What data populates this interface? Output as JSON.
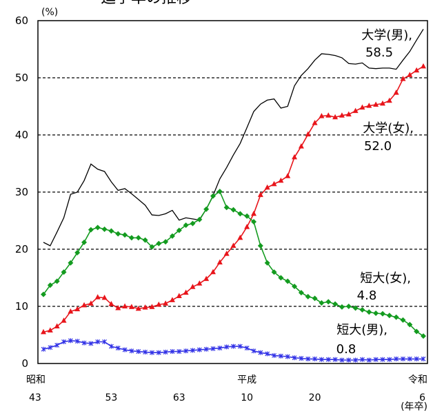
{
  "title_partial": "進学率の推移",
  "chart_data": {
    "type": "line",
    "ylabel": "(%)",
    "xlabel": "(年卒)",
    "ylim": [
      0,
      60
    ],
    "yticks": [
      "0",
      "10",
      "20",
      "30",
      "40",
      "50",
      "60"
    ],
    "xlim": [
      1968,
      2024
    ],
    "grid": "horizontal dashed at 10–50",
    "xticks": [
      {
        "top": "昭和",
        "bottom": "43",
        "year": 1968
      },
      {
        "top": "",
        "bottom": "53",
        "year": 1978
      },
      {
        "top": "",
        "bottom": "63",
        "year": 1988
      },
      {
        "top": "平成",
        "bottom": "10",
        "year": 1998
      },
      {
        "top": "",
        "bottom": "20",
        "year": 2008
      },
      {
        "top": "令和",
        "bottom": "6",
        "year": 2024
      }
    ],
    "x": [
      1968,
      1969,
      1970,
      1971,
      1972,
      1973,
      1974,
      1975,
      1976,
      1977,
      1978,
      1979,
      1980,
      1981,
      1982,
      1983,
      1984,
      1985,
      1986,
      1987,
      1988,
      1989,
      1990,
      1991,
      1992,
      1993,
      1994,
      1995,
      1996,
      1997,
      1998,
      1999,
      2000,
      2001,
      2002,
      2003,
      2004,
      2005,
      2006,
      2007,
      2008,
      2009,
      2010,
      2011,
      2012,
      2013,
      2014,
      2015,
      2016,
      2017,
      2018,
      2019,
      2020,
      2021,
      2022,
      2023,
      2024
    ],
    "series": [
      {
        "name": "大学(男)",
        "end_label": "58.5",
        "color": "#000000",
        "marker": "none",
        "values": [
          21.2,
          20.6,
          23.0,
          25.5,
          29.6,
          30.0,
          32.0,
          34.9,
          34.0,
          33.6,
          31.8,
          30.3,
          30.6,
          29.7,
          28.7,
          27.7,
          26.0,
          25.9,
          26.2,
          26.8,
          25.1,
          25.5,
          25.3,
          25.1,
          27.0,
          29.4,
          32.3,
          34.3,
          36.5,
          38.5,
          41.3,
          44.1,
          45.4,
          46.1,
          46.3,
          44.7,
          45.0,
          48.6,
          50.4,
          51.6,
          53.1,
          54.2,
          54.1,
          53.9,
          53.5,
          52.5,
          52.4,
          52.6,
          51.7,
          51.6,
          51.7,
          51.7,
          51.5,
          53.1,
          54.6,
          56.6,
          58.5
        ]
      },
      {
        "name": "大学(女)",
        "end_label": "52.0",
        "color": "#e8151b",
        "marker": "triangle",
        "values": [
          5.5,
          5.8,
          6.5,
          7.5,
          9.1,
          9.5,
          10.2,
          10.5,
          11.6,
          11.5,
          10.4,
          9.7,
          10.0,
          9.9,
          9.6,
          9.8,
          9.9,
          10.3,
          10.5,
          11.1,
          11.8,
          12.4,
          13.4,
          14.0,
          14.8,
          16.0,
          17.7,
          19.2,
          20.6,
          22.0,
          23.9,
          26.2,
          29.5,
          30.8,
          31.4,
          32.0,
          32.8,
          36.1,
          38.0,
          40.1,
          42.1,
          43.3,
          43.4,
          43.1,
          43.4,
          43.6,
          44.2,
          44.8,
          45.1,
          45.3,
          45.5,
          46.0,
          47.4,
          49.8,
          50.5,
          51.3,
          52.0
        ]
      },
      {
        "name": "短大(女)",
        "end_label": "4.8",
        "color": "#139b1f",
        "marker": "diamond",
        "values": [
          12.1,
          13.7,
          14.4,
          16.0,
          17.6,
          19.4,
          21.2,
          23.4,
          23.8,
          23.5,
          23.2,
          22.7,
          22.5,
          22.0,
          22.0,
          21.6,
          20.4,
          21.0,
          21.3,
          22.3,
          23.3,
          24.2,
          24.5,
          25.2,
          27.0,
          29.3,
          30.1,
          27.3,
          26.9,
          26.2,
          25.8,
          24.8,
          20.6,
          17.6,
          16.0,
          15.0,
          14.4,
          13.5,
          12.4,
          11.7,
          11.4,
          10.6,
          10.8,
          10.4,
          9.9,
          10.0,
          9.7,
          9.4,
          9.0,
          8.8,
          8.7,
          8.4,
          8.1,
          7.6,
          6.8,
          5.6,
          4.8
        ]
      },
      {
        "name": "短大(男)",
        "end_label": "0.8",
        "color": "#3131e6",
        "marker": "star",
        "values": [
          2.5,
          2.8,
          3.2,
          3.8,
          4.0,
          3.9,
          3.6,
          3.5,
          3.8,
          3.8,
          3.0,
          2.7,
          2.4,
          2.2,
          2.1,
          2.0,
          1.9,
          1.9,
          2.0,
          2.1,
          2.1,
          2.2,
          2.3,
          2.4,
          2.5,
          2.6,
          2.7,
          2.9,
          3.0,
          3.0,
          2.7,
          2.2,
          1.9,
          1.7,
          1.4,
          1.3,
          1.2,
          1.0,
          0.9,
          0.8,
          0.8,
          0.7,
          0.7,
          0.7,
          0.6,
          0.6,
          0.6,
          0.7,
          0.6,
          0.7,
          0.7,
          0.7,
          0.8,
          0.8,
          0.8,
          0.8,
          0.8
        ]
      }
    ]
  }
}
